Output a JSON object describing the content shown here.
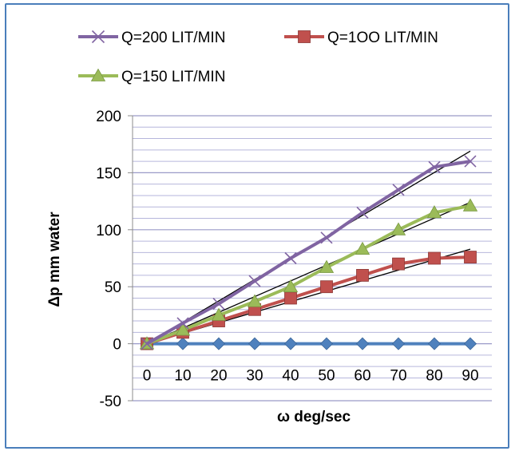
{
  "chart_data": {
    "type": "line",
    "xlabel": "ω  deg/sec",
    "ylabel": "Δp  mm water",
    "x": [
      0,
      10,
      20,
      30,
      40,
      50,
      60,
      70,
      80,
      90
    ],
    "x_ticks": [
      "0",
      "10",
      "20",
      "30",
      "40",
      "50",
      "60",
      "70",
      "80",
      "90"
    ],
    "ylim": [
      -50,
      200
    ],
    "y_ticks": [
      -50,
      0,
      50,
      100,
      150,
      200
    ],
    "y_tick_labels": [
      "-50",
      "0",
      "50",
      "100",
      "150",
      "200"
    ],
    "grid": "horizontal, minor lines every 10",
    "legend": "top",
    "series": [
      {
        "name": "Q=200 LIT/MIN",
        "marker": "x",
        "color": "#8064a2",
        "values": [
          0,
          18,
          35,
          55,
          75,
          93,
          115,
          135,
          155,
          160
        ]
      },
      {
        "name": "Q=1OO LIT/MIN",
        "marker": "square",
        "color": "#c0504d",
        "values": [
          0,
          10,
          20,
          30,
          40,
          50,
          60,
          70,
          75,
          76
        ]
      },
      {
        "name": "Q=150 LIT/MIN",
        "marker": "triangle",
        "color": "#9bbb59",
        "values": [
          0,
          12,
          25,
          37,
          50,
          67,
          83,
          100,
          115,
          121
        ]
      },
      {
        "marker": "diamond",
        "color": "#4f81bd",
        "values": [
          0,
          0,
          0,
          0,
          0,
          0,
          0,
          0,
          0,
          0
        ]
      }
    ],
    "trendlines": [
      {
        "color": "#000000",
        "from": [
          0,
          0
        ],
        "to": [
          90,
          169
        ]
      },
      {
        "color": "#000000",
        "from": [
          0,
          0
        ],
        "to": [
          90,
          124
        ]
      },
      {
        "color": "#000000",
        "from": [
          0,
          0
        ],
        "to": [
          90,
          83
        ]
      }
    ]
  }
}
